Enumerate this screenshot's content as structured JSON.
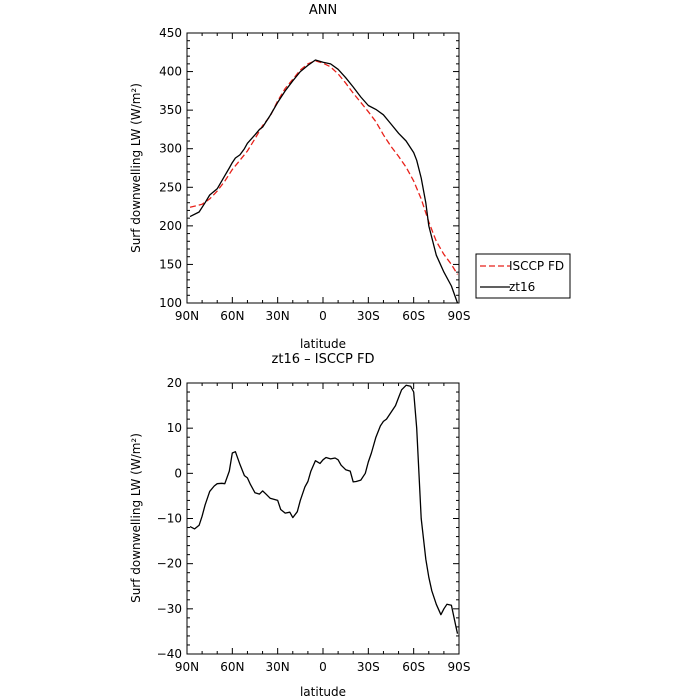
{
  "chart_data": [
    {
      "type": "line",
      "title": "ANN",
      "xlabel": "latitude",
      "ylabel": "Surf downwelling LW (W/m²)",
      "xlim": [
        90,
        -90
      ],
      "ylim": [
        100,
        450
      ],
      "xticks": [
        "90N",
        "60N",
        "30N",
        "0",
        "30S",
        "60S",
        "90S"
      ],
      "yticks": [
        "100",
        "150",
        "200",
        "250",
        "300",
        "350",
        "400",
        "450"
      ],
      "legend": "right-outside",
      "series": [
        {
          "name": "ISCCP FD",
          "color": "#e8211a",
          "style": "dashed",
          "x": [
            88,
            80,
            75,
            70,
            65,
            60,
            55,
            50,
            45,
            40,
            35,
            30,
            25,
            20,
            15,
            10,
            5,
            0,
            -5,
            -10,
            -15,
            -20,
            -25,
            -30,
            -35,
            -40,
            -45,
            -50,
            -55,
            -60,
            -65,
            -70,
            -75,
            -80,
            -85,
            -89
          ],
          "y": [
            224,
            228,
            235,
            245,
            258,
            273,
            285,
            297,
            313,
            330,
            342,
            362,
            378,
            390,
            402,
            410,
            414,
            411,
            406,
            397,
            385,
            372,
            360,
            348,
            335,
            318,
            303,
            290,
            276,
            258,
            235,
            205,
            180,
            163,
            150,
            137
          ]
        },
        {
          "name": "zt16",
          "color": "#000000",
          "style": "solid",
          "x": [
            88,
            82,
            78,
            75,
            70,
            65,
            62,
            60,
            58,
            55,
            52,
            50,
            45,
            42,
            40,
            35,
            30,
            25,
            20,
            15,
            10,
            5,
            0,
            -5,
            -10,
            -15,
            -20,
            -25,
            -30,
            -35,
            -40,
            -45,
            -50,
            -55,
            -60,
            -62,
            -65,
            -68,
            -70,
            -75,
            -80,
            -85,
            -89
          ],
          "y": [
            212,
            218,
            230,
            240,
            248,
            265,
            275,
            282,
            288,
            292,
            300,
            307,
            318,
            325,
            328,
            343,
            360,
            375,
            388,
            400,
            408,
            415,
            412,
            410,
            403,
            392,
            380,
            367,
            356,
            351,
            344,
            332,
            320,
            310,
            295,
            285,
            262,
            230,
            200,
            162,
            140,
            122,
            100
          ]
        }
      ]
    },
    {
      "type": "line",
      "title": "zt16 – ISCCP FD",
      "xlabel": "latitude",
      "ylabel": "Surf downwelling LW (W/m²)",
      "xlim": [
        90,
        -90
      ],
      "ylim": [
        -40,
        20
      ],
      "xticks": [
        "90N",
        "60N",
        "30N",
        "0",
        "30S",
        "60S",
        "90S"
      ],
      "yticks": [
        "-40",
        "-30",
        "-20",
        "-10",
        "0",
        "10",
        "20"
      ],
      "series": [
        {
          "color": "#000000",
          "style": "solid",
          "x": [
            88,
            85,
            82,
            80,
            78,
            75,
            72,
            70,
            67,
            65,
            62,
            60,
            58,
            55,
            52,
            50,
            48,
            45,
            42,
            40,
            38,
            35,
            32,
            30,
            28,
            25,
            22,
            20,
            17,
            15,
            12,
            10,
            8,
            5,
            2,
            0,
            -2,
            -5,
            -8,
            -10,
            -12,
            -15,
            -18,
            -20,
            -22,
            -25,
            -28,
            -30,
            -32,
            -35,
            -38,
            -40,
            -42,
            -45,
            -48,
            -50,
            -52,
            -55,
            -58,
            -60,
            -62,
            -65,
            -68,
            -70,
            -72,
            -75,
            -78,
            -80,
            -82,
            -85,
            -88,
            -89
          ],
          "y": [
            -11.8,
            -12.3,
            -11.5,
            -9.5,
            -7,
            -4,
            -2.8,
            -2.3,
            -2.2,
            -2.3,
            0.5,
            4.5,
            4.8,
            2,
            -0.5,
            -1,
            -2.5,
            -4.3,
            -4.6,
            -3.9,
            -4.5,
            -5.5,
            -5.8,
            -6,
            -8,
            -8.8,
            -8.6,
            -9.8,
            -8.5,
            -6,
            -3,
            -1.8,
            0.5,
            2.8,
            2.2,
            3,
            3.5,
            3.2,
            3.4,
            3,
            1.8,
            0.8,
            0.5,
            -1.9,
            -1.8,
            -1.5,
            0,
            2.5,
            4.5,
            8,
            10.5,
            11.5,
            12,
            13.5,
            15,
            16.8,
            18.5,
            19.5,
            19.3,
            18,
            10,
            -10,
            -19,
            -23,
            -26,
            -29,
            -31.3,
            -30,
            -29,
            -29.2,
            -34,
            -35.5
          ]
        }
      ]
    }
  ]
}
